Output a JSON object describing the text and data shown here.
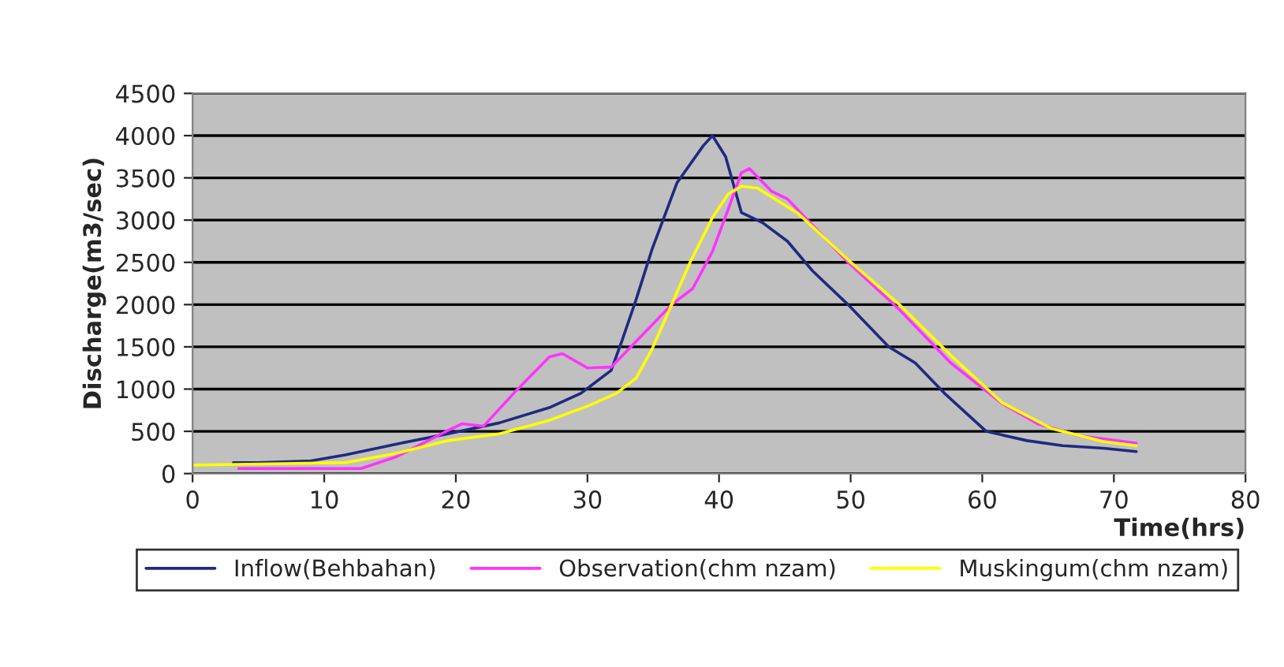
{
  "chart_data": {
    "type": "line",
    "xlabel": "Time(hrs)",
    "ylabel": "Discharge(m3/sec)",
    "xlim": [
      0,
      80
    ],
    "xticks": [
      0,
      10,
      20,
      30,
      40,
      50,
      60,
      70,
      80
    ],
    "ylim": [
      0,
      4500
    ],
    "yticks": [
      0,
      500,
      1000,
      1500,
      2000,
      2500,
      3000,
      3500,
      4000,
      4500
    ],
    "grid": "y",
    "legend": "bottom",
    "series": [
      {
        "name": "Inflow(Behbahan)",
        "color": "#1f2a80",
        "x": [
          3.1,
          5,
          9,
          11.6,
          15.5,
          19.4,
          23.3,
          27.1,
          29.5,
          31.8,
          32.6,
          33.7,
          34.9,
          36.8,
          38.8,
          39.5,
          40.5,
          41.7,
          43.3,
          45.2,
          47.1,
          49.8,
          52.9,
          54.9,
          57.2,
          60.3,
          63.4,
          66.1,
          69.2,
          71.7
        ],
        "values": [
          130,
          130,
          150,
          220,
          350,
          470,
          600,
          780,
          950,
          1220,
          1560,
          2060,
          2650,
          3440,
          3880,
          4000,
          3750,
          3090,
          2970,
          2750,
          2400,
          2000,
          1500,
          1310,
          940,
          500,
          390,
          330,
          300,
          260
        ]
      },
      {
        "name": "Observation(chm nzam)",
        "color": "#ff33ff",
        "x": [
          3.5,
          12.8,
          15.5,
          19.4,
          20.5,
          22.1,
          24.4,
          27.1,
          28.1,
          30,
          31.8,
          33.3,
          36.4,
          38,
          39.5,
          40.7,
          41.7,
          42.3,
          44,
          45.2,
          49.8,
          53.7,
          57.6,
          61.5,
          64.2,
          67.3,
          71.7
        ],
        "values": [
          60,
          60,
          200,
          510,
          590,
          560,
          950,
          1380,
          1420,
          1250,
          1260,
          1500,
          2000,
          2190,
          2630,
          3130,
          3560,
          3610,
          3340,
          3250,
          2500,
          1940,
          1310,
          830,
          590,
          450,
          360
        ]
      },
      {
        "name": "Muskingum(chm nzam)",
        "color": "#ffff00",
        "x": [
          0,
          11.6,
          15.5,
          19.4,
          23.3,
          27.1,
          30.2,
          32.2,
          33.7,
          34.9,
          36.4,
          37.8,
          39.5,
          40.7,
          41.7,
          42.9,
          46,
          49.8,
          53.7,
          57.6,
          61.5,
          65.3,
          69.2,
          71.7
        ],
        "values": [
          100,
          130,
          240,
          390,
          470,
          630,
          810,
          950,
          1130,
          1470,
          2000,
          2500,
          3030,
          3310,
          3400,
          3380,
          3080,
          2530,
          2000,
          1400,
          840,
          530,
          380,
          330
        ]
      }
    ]
  }
}
